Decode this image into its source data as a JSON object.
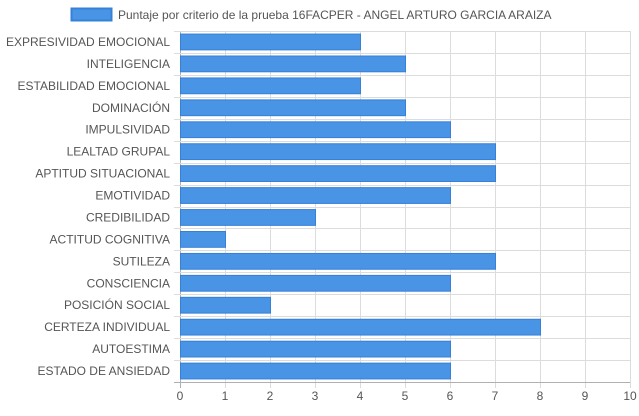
{
  "chart_data": {
    "type": "bar",
    "orientation": "horizontal",
    "categories": [
      "EXPRESIVIDAD EMOCIONAL",
      "INTELIGENCIA",
      "ESTABILIDAD EMOCIONAL",
      "DOMINACIÓN",
      "IMPULSIVIDAD",
      "LEALTAD GRUPAL",
      "APTITUD SITUACIONAL",
      "EMOTIVIDAD",
      "CREDIBILIDAD",
      "ACTITUD COGNITIVA",
      "SUTILEZA",
      "CONSCIENCIA",
      "POSICIÓN SOCIAL",
      "CERTEZA INDIVIDUAL",
      "AUTOESTIMA",
      "ESTADO DE ANSIEDAD"
    ],
    "series": [
      {
        "name": "Puntaje por criterio de la prueba 16FACPER - ANGEL ARTURO GARCIA ARAIZA",
        "values": [
          4,
          5,
          4,
          5,
          6,
          7,
          7,
          6,
          3,
          1,
          7,
          6,
          2,
          8,
          6,
          6
        ]
      }
    ],
    "xlim": [
      0,
      10
    ],
    "x_ticks": [
      "0",
      "1",
      "2",
      "3",
      "4",
      "5",
      "6",
      "7",
      "8",
      "9",
      "10"
    ],
    "grid": true,
    "legend_position": "top",
    "colors": {
      "bar_fill": "#4a94e6",
      "bar_stroke": "#3580d8",
      "grid": "#dcdcdc",
      "axis": "#b0b0b0",
      "text": "#555555"
    }
  }
}
